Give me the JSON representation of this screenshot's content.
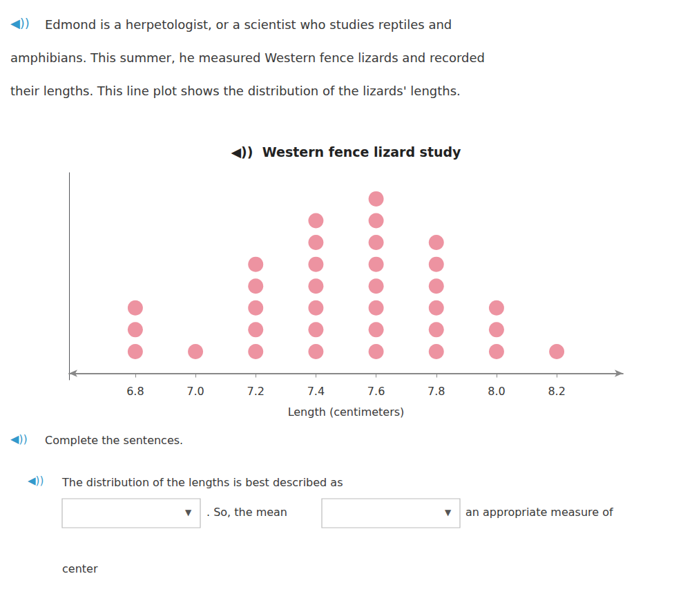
{
  "chart_data": {
    "type": "dot_plot",
    "title": "◀))  Western fence lizard study",
    "xlabel": "Length (centimeters)",
    "x": [
      6.8,
      7.0,
      7.2,
      7.4,
      7.6,
      7.8,
      8.0,
      8.2
    ],
    "values": [
      3,
      1,
      5,
      7,
      8,
      6,
      3,
      1
    ],
    "color": "#E8788A",
    "xlim": [
      6.58,
      8.42
    ],
    "xticks": [
      6.8,
      {
        "value": 7.0,
        "label": "7.0"
      },
      7.2,
      7.4,
      7.6,
      7.8,
      {
        "value": 8.0,
        "label": "8.0"
      },
      8.2
    ],
    "ylim": [
      -0.3,
      9.2
    ],
    "yticks": [],
    "tick_labels": "x",
    "grid": false,
    "annotations": [
      "◀))",
      "Edmond is a herpetologist, or a scientist who studies reptiles and",
      "amphibians. This summer, he measured Western fence lizards and recorded",
      "their lengths. This line plot shows the distribution of the lizards' lengths.",
      "◀))",
      "Complete the sentences.",
      "◀))",
      "The distribution of the lengths is best described as",
      "▼",
      ". So, the mean",
      "▼",
      "an appropriate measure of",
      "center"
    ]
  }
}
